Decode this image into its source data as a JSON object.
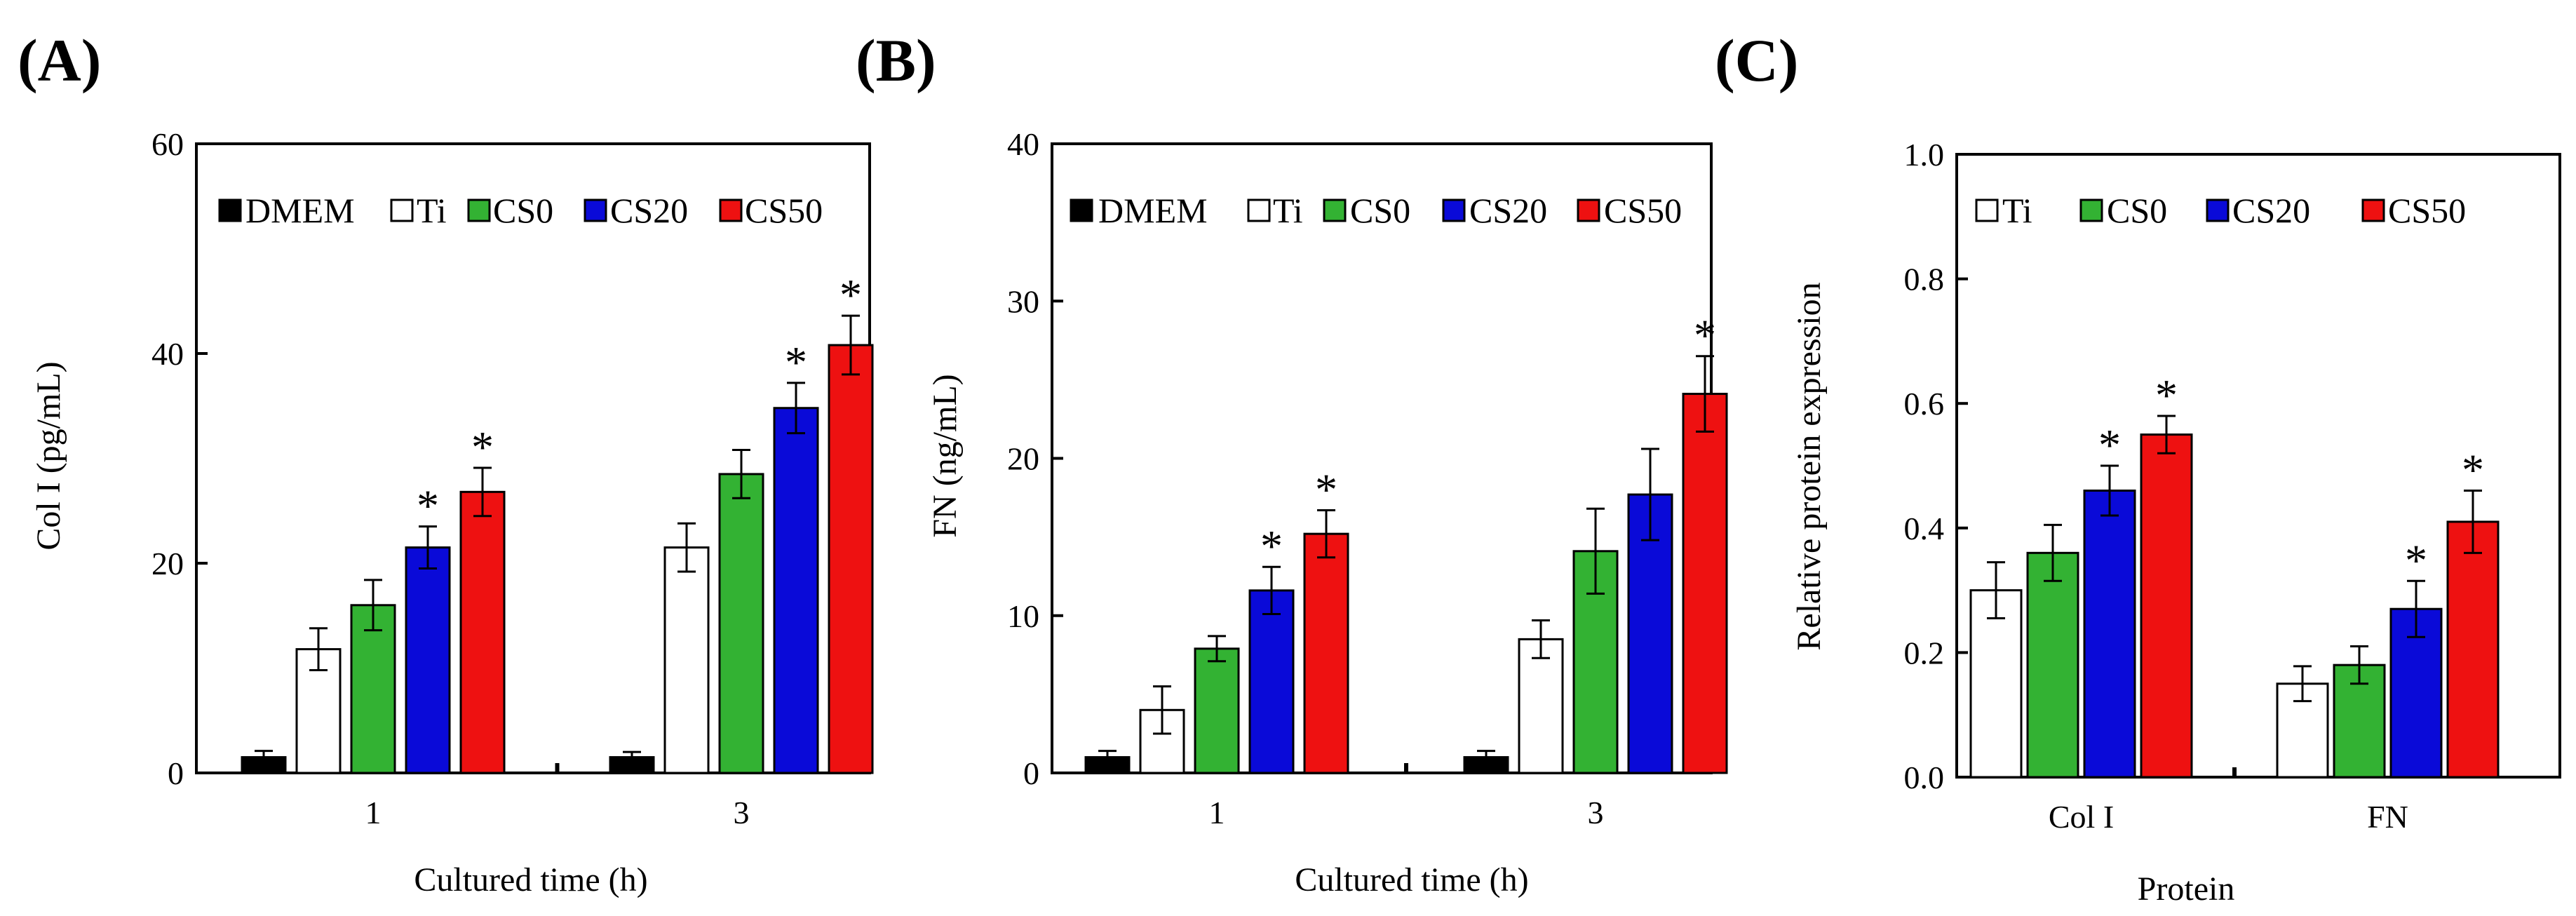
{
  "colors": {
    "DMEM": "#000000",
    "Ti": "#ffffff",
    "CS0": "#33b233",
    "CS20": "#0a0ad8",
    "CS50": "#ee1111"
  },
  "chart_data": [
    {
      "panel": "(A)",
      "type": "bar",
      "xlabel": "Cultured time (h)",
      "ylabel": "Col I (pg/mL)",
      "ylim": [
        0,
        60
      ],
      "yticks": [
        "0",
        "20",
        "40",
        "60"
      ],
      "categories": [
        "1",
        "3"
      ],
      "legend": "top",
      "series": [
        {
          "name": "DMEM",
          "values": [
            1.5,
            1.5
          ],
          "errors": [
            0.6,
            0.5
          ],
          "sig": [
            false,
            false
          ]
        },
        {
          "name": "Ti",
          "values": [
            11.8,
            21.5
          ],
          "errors": [
            2.0,
            2.3
          ],
          "sig": [
            false,
            false
          ]
        },
        {
          "name": "CS0",
          "values": [
            16.0,
            28.5
          ],
          "errors": [
            2.4,
            2.3
          ],
          "sig": [
            false,
            false
          ]
        },
        {
          "name": "CS20",
          "values": [
            21.5,
            34.8
          ],
          "errors": [
            2.0,
            2.4
          ],
          "sig": [
            true,
            true
          ]
        },
        {
          "name": "CS50",
          "values": [
            26.8,
            40.8
          ],
          "errors": [
            2.3,
            2.8
          ],
          "sig": [
            true,
            true
          ]
        }
      ]
    },
    {
      "panel": "(B)",
      "type": "bar",
      "xlabel": "Cultured time (h)",
      "ylabel": "FN (ng/mL)",
      "ylim": [
        0,
        40
      ],
      "yticks": [
        "0",
        "10",
        "20",
        "30",
        "40"
      ],
      "categories": [
        "1",
        "3"
      ],
      "legend": "top",
      "series": [
        {
          "name": "DMEM",
          "values": [
            1.0,
            1.0
          ],
          "errors": [
            0.4,
            0.4
          ],
          "sig": [
            false,
            false
          ]
        },
        {
          "name": "Ti",
          "values": [
            4.0,
            8.5
          ],
          "errors": [
            1.5,
            1.2
          ],
          "sig": [
            false,
            false
          ]
        },
        {
          "name": "CS0",
          "values": [
            7.9,
            14.1
          ],
          "errors": [
            0.8,
            2.7
          ],
          "sig": [
            false,
            false
          ]
        },
        {
          "name": "CS20",
          "values": [
            11.6,
            17.7
          ],
          "errors": [
            1.5,
            2.9
          ],
          "sig": [
            true,
            false
          ]
        },
        {
          "name": "CS50",
          "values": [
            15.2,
            24.1
          ],
          "errors": [
            1.5,
            2.4
          ],
          "sig": [
            true,
            true
          ]
        }
      ]
    },
    {
      "panel": "(C)",
      "type": "bar",
      "xlabel": "Protein",
      "ylabel": "Relative protein expression",
      "ylim": [
        0,
        1.0
      ],
      "yticks": [
        "0.0",
        "0.2",
        "0.4",
        "0.6",
        "0.8",
        "1.0"
      ],
      "categories": [
        "Col I",
        "FN"
      ],
      "legend": "top",
      "series": [
        {
          "name": "Ti",
          "values": [
            0.3,
            0.15
          ],
          "errors": [
            0.045,
            0.028
          ],
          "sig": [
            false,
            false
          ]
        },
        {
          "name": "CS0",
          "values": [
            0.36,
            0.18
          ],
          "errors": [
            0.045,
            0.03
          ],
          "sig": [
            false,
            false
          ]
        },
        {
          "name": "CS20",
          "values": [
            0.46,
            0.27
          ],
          "errors": [
            0.04,
            0.045
          ],
          "sig": [
            true,
            true
          ]
        },
        {
          "name": "CS50",
          "values": [
            0.55,
            0.41
          ],
          "errors": [
            0.03,
            0.05
          ],
          "sig": [
            true,
            true
          ]
        }
      ]
    }
  ]
}
